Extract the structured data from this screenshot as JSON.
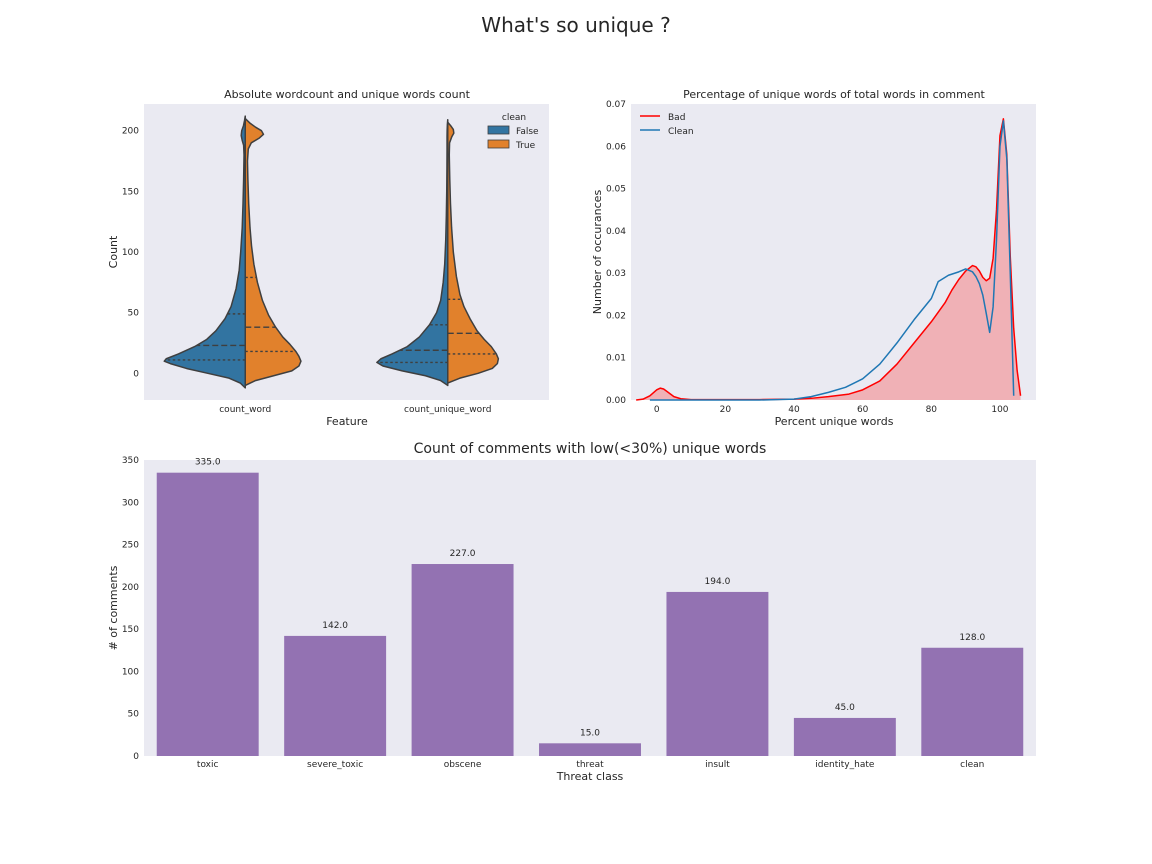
{
  "figure": {
    "title": "What's so unique ?"
  },
  "chart_data": [
    {
      "type": "violin",
      "title": "Absolute wordcount and unique words count",
      "xlabel": "Feature",
      "ylabel": "Count",
      "categories": [
        "count_word",
        "count_unique_word"
      ],
      "ylim": [
        -22,
        222
      ],
      "yticks": [
        0,
        50,
        100,
        150,
        200
      ],
      "grid": false,
      "legend": {
        "title": "clean",
        "placement": "top-right",
        "entries": [
          {
            "label": "False",
            "color": "#3274a1"
          },
          {
            "label": "True",
            "color": "#e1812c"
          }
        ]
      },
      "split": true,
      "inner": "quartile",
      "series": [
        {
          "name": "False",
          "color": "#3274a1",
          "groups": [
            {
              "category": "count_word",
              "quartiles": [
                11,
                23,
                49
              ],
              "profile": [
                [
                  -12,
                  0
                ],
                [
                  -8,
                  0.05
                ],
                [
                  -4,
                  0.16
                ],
                [
                  0,
                  0.37
                ],
                [
                  4,
                  0.58
                ],
                [
                  8,
                  0.74
                ],
                [
                  10,
                  0.8
                ],
                [
                  12,
                  0.78
                ],
                [
                  16,
                  0.66
                ],
                [
                  22,
                  0.5
                ],
                [
                  28,
                  0.38
                ],
                [
                  35,
                  0.29
                ],
                [
                  45,
                  0.2
                ],
                [
                  55,
                  0.14
                ],
                [
                  70,
                  0.09
                ],
                [
                  85,
                  0.06
                ],
                [
                  100,
                  0.045
                ],
                [
                  120,
                  0.03
                ],
                [
                  140,
                  0.022
                ],
                [
                  160,
                  0.016
                ],
                [
                  180,
                  0.012
                ],
                [
                  188,
                  0.016
                ],
                [
                  192,
                  0.03
                ],
                [
                  196,
                  0.04
                ],
                [
                  200,
                  0.035
                ],
                [
                  204,
                  0.018
                ],
                [
                  208,
                  0.008
                ],
                [
                  212,
                  0
                ]
              ]
            },
            {
              "category": "count_unique_word",
              "quartiles": [
                9,
                19,
                40
              ],
              "profile": [
                [
                  -10,
                  0
                ],
                [
                  -6,
                  0.07
                ],
                [
                  -2,
                  0.22
                ],
                [
                  2,
                  0.45
                ],
                [
                  6,
                  0.64
                ],
                [
                  9,
                  0.7
                ],
                [
                  12,
                  0.66
                ],
                [
                  16,
                  0.55
                ],
                [
                  22,
                  0.4
                ],
                [
                  30,
                  0.28
                ],
                [
                  40,
                  0.18
                ],
                [
                  50,
                  0.11
                ],
                [
                  60,
                  0.07
                ],
                [
                  75,
                  0.045
                ],
                [
                  90,
                  0.03
                ],
                [
                  110,
                  0.02
                ],
                [
                  130,
                  0.014
                ],
                [
                  150,
                  0.01
                ],
                [
                  170,
                  0.008
                ],
                [
                  185,
                  0.007
                ],
                [
                  195,
                  0.007
                ],
                [
                  200,
                  0.006
                ],
                [
                  205,
                  0.004
                ],
                [
                  209,
                  0
                ]
              ]
            }
          ]
        },
        {
          "name": "True",
          "color": "#e1812c",
          "groups": [
            {
              "category": "count_word",
              "quartiles": [
                18,
                38,
                79
              ],
              "profile": [
                [
                  -10,
                  0
                ],
                [
                  -6,
                  0.1
                ],
                [
                  -2,
                  0.28
                ],
                [
                  2,
                  0.46
                ],
                [
                  6,
                  0.53
                ],
                [
                  10,
                  0.55
                ],
                [
                  14,
                  0.53
                ],
                [
                  18,
                  0.5
                ],
                [
                  24,
                  0.44
                ],
                [
                  30,
                  0.37
                ],
                [
                  38,
                  0.3
                ],
                [
                  48,
                  0.23
                ],
                [
                  60,
                  0.17
                ],
                [
                  75,
                  0.12
                ],
                [
                  90,
                  0.085
                ],
                [
                  105,
                  0.062
                ],
                [
                  120,
                  0.047
                ],
                [
                  140,
                  0.034
                ],
                [
                  160,
                  0.026
                ],
                [
                  175,
                  0.022
                ],
                [
                  185,
                  0.03
                ],
                [
                  190,
                  0.06
                ],
                [
                  194,
                  0.14
                ],
                [
                  197,
                  0.18
                ],
                [
                  200,
                  0.16
                ],
                [
                  203,
                  0.1
                ],
                [
                  206,
                  0.05
                ],
                [
                  210,
                  0
                ]
              ]
            },
            {
              "category": "count_unique_word",
              "quartiles": [
                16,
                33,
                61
              ],
              "profile": [
                [
                  -8,
                  0
                ],
                [
                  -4,
                  0.12
                ],
                [
                  0,
                  0.3
                ],
                [
                  4,
                  0.44
                ],
                [
                  8,
                  0.49
                ],
                [
                  12,
                  0.5
                ],
                [
                  16,
                  0.48
                ],
                [
                  22,
                  0.43
                ],
                [
                  28,
                  0.36
                ],
                [
                  35,
                  0.29
                ],
                [
                  45,
                  0.22
                ],
                [
                  55,
                  0.16
                ],
                [
                  65,
                  0.12
                ],
                [
                  80,
                  0.085
                ],
                [
                  100,
                  0.055
                ],
                [
                  120,
                  0.038
                ],
                [
                  140,
                  0.027
                ],
                [
                  160,
                  0.02
                ],
                [
                  180,
                  0.015
                ],
                [
                  190,
                  0.018
                ],
                [
                  195,
                  0.04
                ],
                [
                  198,
                  0.06
                ],
                [
                  201,
                  0.055
                ],
                [
                  204,
                  0.03
                ],
                [
                  207,
                  0
                ]
              ]
            }
          ]
        }
      ]
    },
    {
      "type": "area",
      "title": "Percentage of unique words of total words in comment",
      "xlabel": "Percent unique words",
      "ylabel": "Number of occurances",
      "xlim": [
        -7.5,
        110.5
      ],
      "ylim": [
        0,
        0.07
      ],
      "xticks": [
        0,
        20,
        40,
        60,
        80,
        100
      ],
      "yticks": [
        0.0,
        0.01,
        0.02,
        0.03,
        0.04,
        0.05,
        0.06,
        0.07
      ],
      "grid": false,
      "legend": {
        "placement": "top-left"
      },
      "series": [
        {
          "name": "Bad",
          "color": "#ff0000",
          "fill": "#f0b1b6",
          "x": [
            -6,
            -4,
            -2,
            -1,
            0,
            1,
            2,
            3,
            5,
            7,
            10,
            15,
            20,
            30,
            40,
            45,
            50,
            53,
            56,
            60,
            65,
            70,
            75,
            80,
            84,
            86,
            88,
            90,
            92,
            93,
            94,
            95,
            96,
            97,
            98,
            99,
            100,
            101,
            102,
            103,
            104,
            105,
            106
          ],
          "y": [
            0,
            0.0002,
            0.001,
            0.0017,
            0.0024,
            0.0028,
            0.0026,
            0.002,
            0.0008,
            0.0003,
            0.0001,
            0.0001,
            0.0001,
            0.0001,
            0.0002,
            0.0004,
            0.0008,
            0.0011,
            0.0014,
            0.0024,
            0.0045,
            0.0085,
            0.0135,
            0.0185,
            0.023,
            0.026,
            0.0285,
            0.0305,
            0.0318,
            0.0315,
            0.0305,
            0.029,
            0.0282,
            0.0288,
            0.0335,
            0.045,
            0.0625,
            0.0665,
            0.058,
            0.034,
            0.017,
            0.007,
            0.001
          ]
        },
        {
          "name": "Clean",
          "color": "#1f77b4",
          "x": [
            -2,
            0,
            5,
            10,
            20,
            30,
            40,
            45,
            50,
            55,
            60,
            65,
            70,
            75,
            80,
            82,
            85,
            88,
            90,
            92,
            93,
            94,
            95,
            96,
            97,
            98,
            99,
            100,
            101,
            102,
            103,
            104
          ],
          "y": [
            0,
            0,
            0,
            0,
            0,
            0,
            0.0002,
            0.0008,
            0.0018,
            0.003,
            0.005,
            0.0085,
            0.0135,
            0.019,
            0.024,
            0.028,
            0.0295,
            0.0303,
            0.031,
            0.0303,
            0.0292,
            0.0275,
            0.0248,
            0.0205,
            0.016,
            0.022,
            0.038,
            0.06,
            0.066,
            0.057,
            0.03,
            0.001
          ]
        }
      ]
    },
    {
      "type": "bar",
      "title": "Count of comments with low(<30%) unique words",
      "xlabel": "Threat class",
      "ylabel": "# of comments",
      "categories": [
        "toxic",
        "severe_toxic",
        "obscene",
        "threat",
        "insult",
        "identity_hate",
        "clean"
      ],
      "values": [
        335,
        142,
        227,
        15,
        194,
        45,
        128
      ],
      "data_labels": [
        "335.0",
        "142.0",
        "227.0",
        "15.0",
        "194.0",
        "45.0",
        "128.0"
      ],
      "ylim": [
        0,
        350
      ],
      "yticks": [
        0,
        50,
        100,
        150,
        200,
        250,
        300,
        350
      ],
      "color": "#9372b2",
      "grid": false
    }
  ]
}
